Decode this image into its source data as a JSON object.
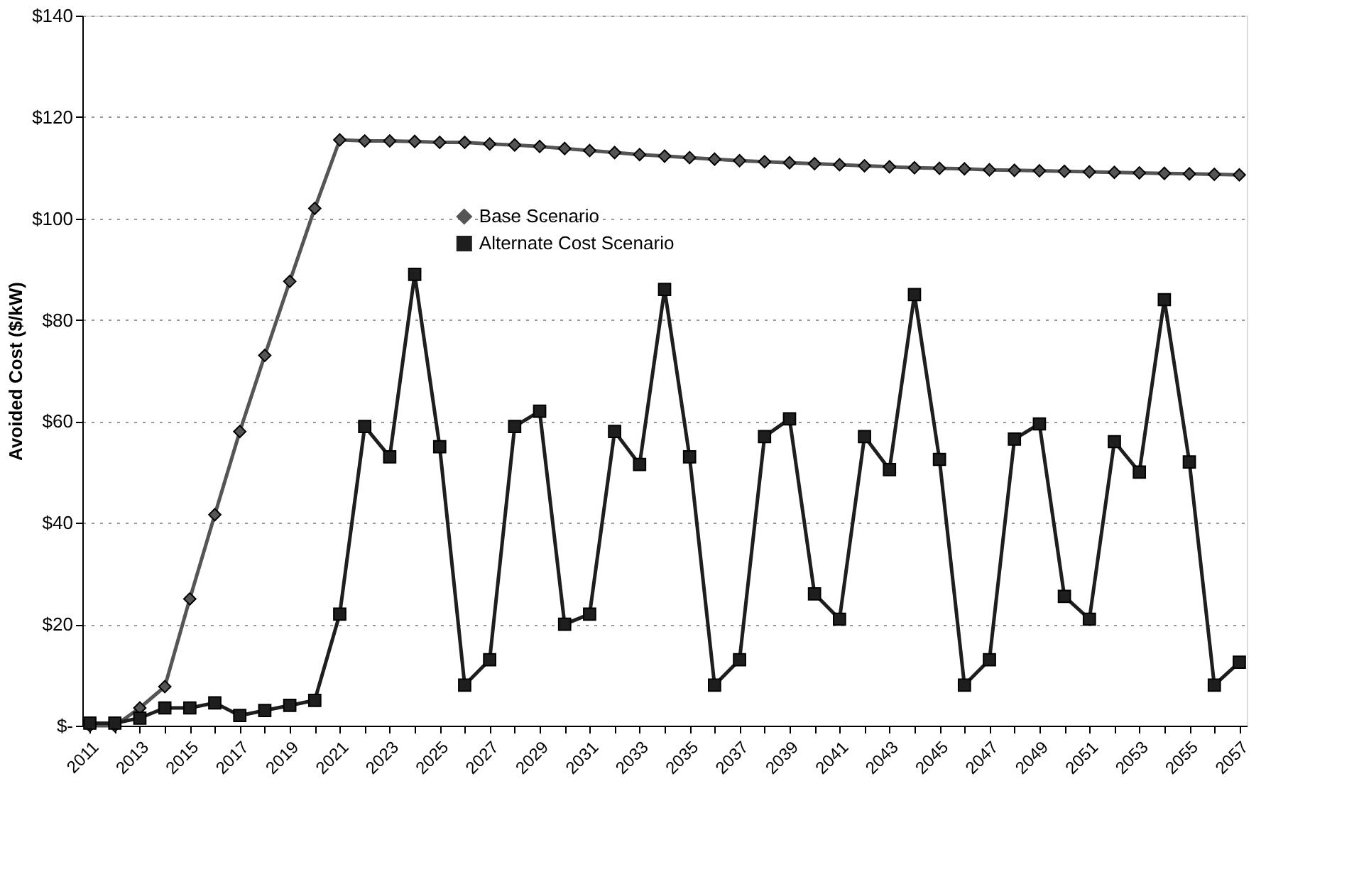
{
  "chart_data": {
    "type": "line",
    "ylabel": "Avoided Cost ($/kW)",
    "categories": [
      "2011",
      null,
      "2013",
      null,
      "2015",
      null,
      "2017",
      null,
      "2019",
      null,
      "2021",
      null,
      "2023",
      null,
      "2025",
      null,
      "2027",
      null,
      "2029",
      null,
      "2031",
      null,
      "2033",
      null,
      "2035",
      null,
      "2037",
      null,
      "2039",
      null,
      "2041",
      null,
      "2043",
      null,
      "2045",
      null,
      "2047",
      null,
      "2049",
      null,
      "2051",
      null,
      "2053",
      null,
      "2055",
      null,
      "2057"
    ],
    "series": [
      {
        "name": "Base Scenario",
        "color": "#555555",
        "marker": "diamond",
        "values": [
          0,
          0,
          3.5,
          7.7,
          25,
          41.6,
          58,
          73,
          87.6,
          102,
          115.5,
          115.3,
          115.3,
          115.2,
          115.0,
          115.0,
          114.7,
          114.5,
          114.2,
          113.8,
          113.4,
          113.0,
          112.6,
          112.3,
          112.0,
          111.7,
          111.4,
          111.2,
          111.0,
          110.8,
          110.6,
          110.4,
          110.2,
          110.0,
          109.9,
          109.8,
          109.6,
          109.5,
          109.4,
          109.3,
          109.2,
          109.1,
          109.0,
          108.9,
          108.8,
          108.7,
          108.6
        ]
      },
      {
        "name": "Alternate Cost Scenario",
        "color": "#1e1e1e",
        "marker": "square",
        "values": [
          0.5,
          0.5,
          1.5,
          3.5,
          3.5,
          4.5,
          2,
          3,
          4,
          5,
          22,
          59,
          53,
          89,
          55,
          8,
          13,
          59,
          62,
          20,
          22,
          58,
          51.5,
          86,
          53,
          8,
          13,
          57,
          60.5,
          26,
          21,
          57,
          50.5,
          85,
          52.5,
          8,
          13,
          56.5,
          59.5,
          25.5,
          21,
          56,
          50,
          84,
          52,
          8,
          12.5
        ]
      }
    ],
    "ylim": [
      0,
      140
    ],
    "yticks": [
      {
        "value": 0,
        "label": "$-"
      },
      {
        "value": 20,
        "label": "$20"
      },
      {
        "value": 40,
        "label": "$40"
      },
      {
        "value": 60,
        "label": "$60"
      },
      {
        "value": 80,
        "label": "$80"
      },
      {
        "value": 100,
        "label": "$100"
      },
      {
        "value": 120,
        "label": "$120"
      },
      {
        "value": 140,
        "label": "$140"
      }
    ],
    "grid": "y",
    "legend": "top",
    "line_style": "solid"
  }
}
